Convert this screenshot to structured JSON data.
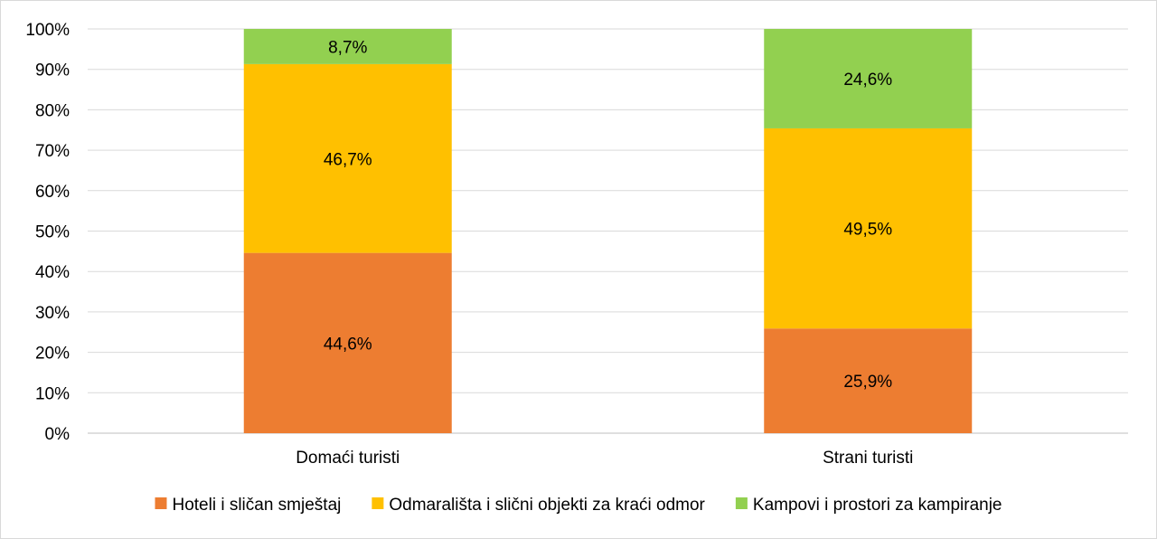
{
  "chart_data": {
    "type": "bar",
    "stacked": true,
    "title": "",
    "xlabel": "",
    "ylabel": "",
    "ylim": [
      0,
      100
    ],
    "y_ticks": [
      "0%",
      "10%",
      "20%",
      "30%",
      "40%",
      "50%",
      "60%",
      "70%",
      "80%",
      "90%",
      "100%"
    ],
    "grid": true,
    "legend_position": "bottom",
    "categories": [
      "Domaći turisti",
      "Strani turisti"
    ],
    "series": [
      {
        "name": "Hoteli i sličan smještaj",
        "color": "#ED7D31",
        "values": [
          44.6,
          25.9
        ],
        "labels": [
          "44,6%",
          "25,9%"
        ]
      },
      {
        "name": "Odmarališta i slični objekti za kraći odmor",
        "color": "#FFC000",
        "values": [
          46.7,
          49.5
        ],
        "labels": [
          "46,7%",
          "49,5%"
        ]
      },
      {
        "name": "Kampovi i prostori za kampiranje",
        "color": "#92D050",
        "values": [
          8.7,
          24.6
        ],
        "labels": [
          "8,7%",
          "24,6%"
        ]
      }
    ]
  }
}
